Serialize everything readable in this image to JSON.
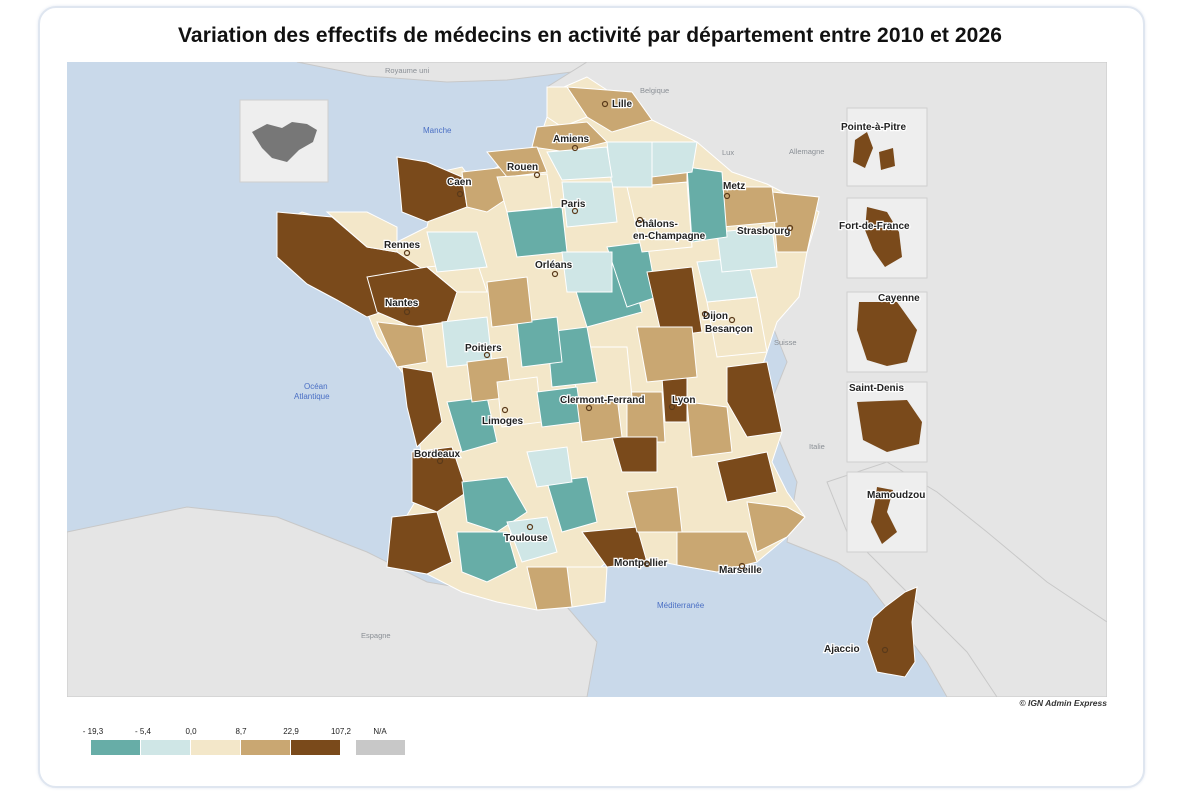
{
  "title": "Variation des effectifs de médecins en activité par département entre 2010 et 2026",
  "copyright": "© IGN Admin Express",
  "colors": {
    "sea": "#c9d9ea",
    "land": "#e5e5e5",
    "class_1": "#67ada7",
    "class_2": "#cfe6e6",
    "class_3": "#f3e7c9",
    "class_4": "#c9a772",
    "class_5": "#7a4a1b",
    "na": "#c8c8c8"
  },
  "legend": {
    "breaks": [
      "- 19,3",
      "- 5,4",
      "0,0",
      "8,7",
      "22,9",
      "107,2"
    ],
    "na_label": "N/A"
  },
  "cities": [
    {
      "name": "Lille"
    },
    {
      "name": "Amiens"
    },
    {
      "name": "Rouen"
    },
    {
      "name": "Caen"
    },
    {
      "name": "Metz"
    },
    {
      "name": "Paris"
    },
    {
      "name": "Châlons-"
    },
    {
      "name": "en-Champagne"
    },
    {
      "name": "Strasbourg"
    },
    {
      "name": "Rennes"
    },
    {
      "name": "Orléans"
    },
    {
      "name": "Nantes"
    },
    {
      "name": "Dijon"
    },
    {
      "name": "Besançon"
    },
    {
      "name": "Poitiers"
    },
    {
      "name": "Clermont-Ferrand"
    },
    {
      "name": "Lyon"
    },
    {
      "name": "Limoges"
    },
    {
      "name": "Bordeaux"
    },
    {
      "name": "Toulouse"
    },
    {
      "name": "Montpellier"
    },
    {
      "name": "Marseille"
    },
    {
      "name": "Ajaccio"
    }
  ],
  "overseas": [
    {
      "name": "Pointe-à-Pitre"
    },
    {
      "name": "Fort-de-France"
    },
    {
      "name": "Cayenne"
    },
    {
      "name": "Saint-Denis"
    },
    {
      "name": "Mamoudzou"
    }
  ],
  "geo_labels": {
    "uk": "Royaume uni",
    "belgium": "Belgique",
    "germany": "Allemagne",
    "lux": "Lux",
    "switzerland": "Suisse",
    "italy": "Italie",
    "spain": "Espagne",
    "manche": "Manche",
    "ocean_1": "Océan",
    "ocean_2": "Atlantique",
    "med": "Méditerranée"
  }
}
